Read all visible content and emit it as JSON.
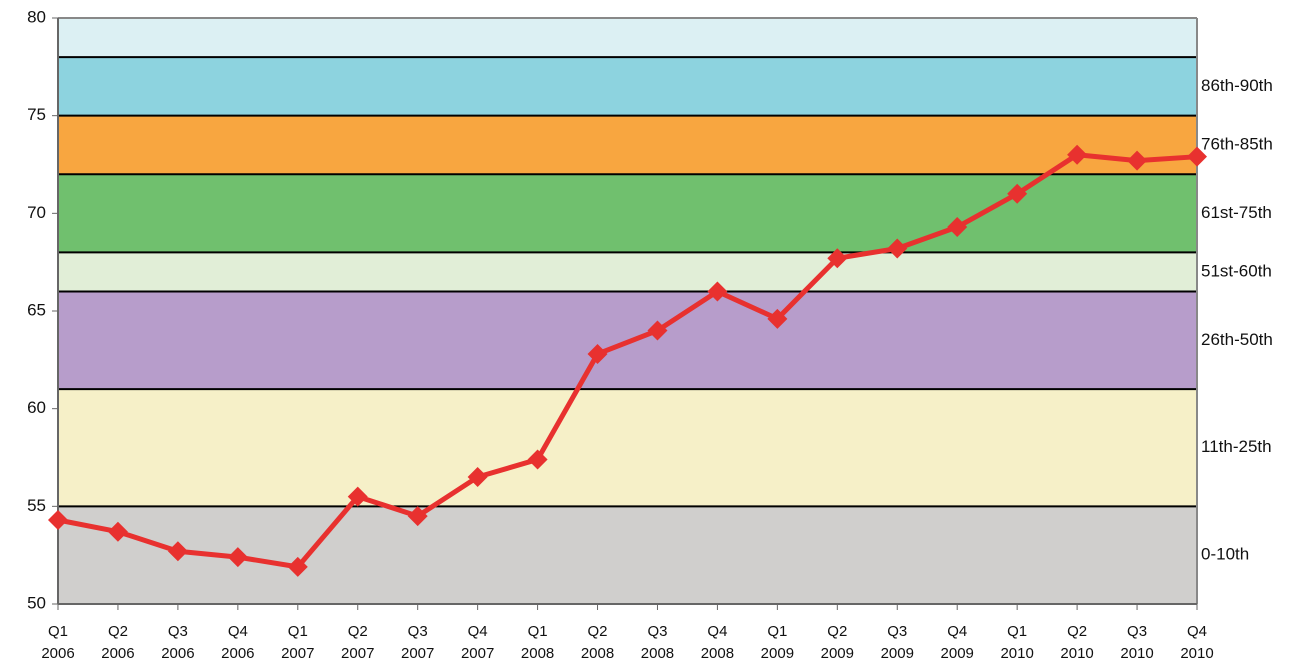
{
  "chart_data": {
    "type": "line",
    "categories": [
      "Q1 2006",
      "Q2 2006",
      "Q3 2006",
      "Q4 2006",
      "Q1 2007",
      "Q2 2007",
      "Q3 2007",
      "Q4 2007",
      "Q1 2008",
      "Q2 2008",
      "Q3 2008",
      "Q4 2008",
      "Q1 2009",
      "Q2 2009",
      "Q3 2009",
      "Q4 2009",
      "Q1 2010",
      "Q2 2010",
      "Q3 2010",
      "Q4 2010"
    ],
    "series": [
      {
        "color": "#e8312f",
        "values": [
          54.3,
          53.7,
          52.7,
          52.4,
          51.9,
          55.5,
          54.5,
          56.5,
          57.4,
          62.8,
          64.0,
          66.0,
          64.6,
          67.7,
          68.2,
          69.3,
          71.0,
          73.0,
          72.7,
          72.9
        ]
      }
    ],
    "bands": [
      {
        "from": 50,
        "to": 55,
        "color": "#d0cfcd",
        "label": "0-10th"
      },
      {
        "from": 55,
        "to": 61,
        "color": "#f6f0c8",
        "label": "11th-25th"
      },
      {
        "from": 61,
        "to": 66,
        "color": "#b79dcb",
        "label": "26th-50th"
      },
      {
        "from": 66,
        "to": 68,
        "color": "#e1eed7",
        "label": "51st-60th"
      },
      {
        "from": 68,
        "to": 72,
        "color": "#70c06e",
        "label": "61st-75th"
      },
      {
        "from": 72,
        "to": 75,
        "color": "#f8a640",
        "label": "76th-85th"
      },
      {
        "from": 75,
        "to": 78,
        "color": "#8dd3df",
        "label": "86th-90th"
      },
      {
        "from": 78,
        "to": 80,
        "color": "#dcf0f3"
      }
    ],
    "ylim": [
      50,
      80
    ],
    "yticks": [
      50,
      55,
      60,
      65,
      70,
      75,
      80
    ]
  }
}
